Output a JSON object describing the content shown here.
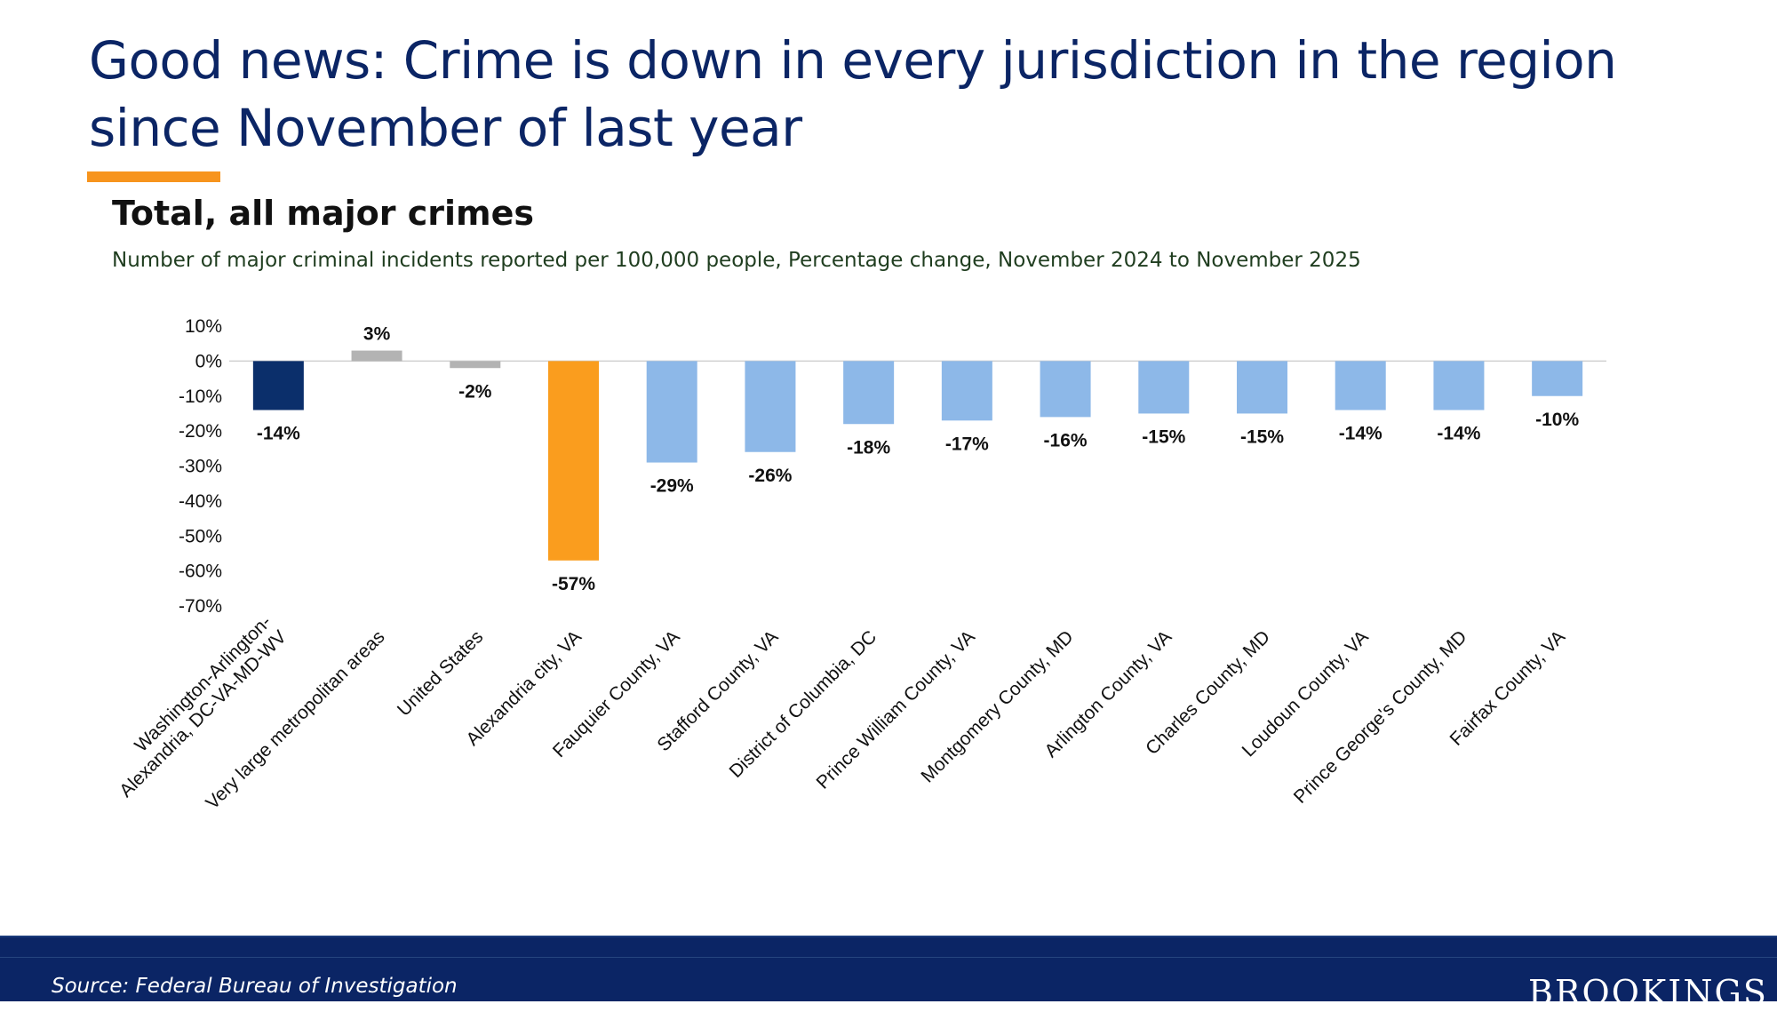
{
  "slide": {
    "title": "Good news: Crime is down in every jurisdiction in the region since November of last year",
    "accent_color": "#f7941d"
  },
  "chart_data": {
    "type": "bar",
    "title": "Total, all major crimes",
    "subtitle": "Number of major criminal incidents reported per 100,000 people, Percentage change, November 2024 to November 2025",
    "categories": [
      "Washington-Arlington-|Alexandria, DC-VA-MD-WV",
      "Very large metropolitan areas",
      "United States",
      "Alexandria city, VA",
      "Fauquier County, VA",
      "Stafford County, VA",
      "District of Columbia, DC",
      "Prince William County, VA",
      "Montgomery County, MD",
      "Arlington County, VA",
      "Charles County, MD",
      "Loudoun County, VA",
      "Prince George's County, MD",
      "Fairfax County, VA"
    ],
    "values": [
      -14,
      3,
      -2,
      -57,
      -29,
      -26,
      -18,
      -17,
      -16,
      -15,
      -15,
      -14,
      -14,
      -10
    ],
    "value_labels": [
      "-14%",
      "3%",
      "-2%",
      "-57%",
      "-29%",
      "-26%",
      "-18%",
      "-17%",
      "-16%",
      "-15%",
      "-15%",
      "-14%",
      "-14%",
      "-10%"
    ],
    "colors": [
      "#0b2f6b",
      "#b3b3b3",
      "#b3b3b3",
      "#fa9d1e",
      "#8db8e8",
      "#8db8e8",
      "#8db8e8",
      "#8db8e8",
      "#8db8e8",
      "#8db8e8",
      "#8db8e8",
      "#8db8e8",
      "#8db8e8",
      "#8db8e8"
    ],
    "ylim": [
      -70,
      10
    ],
    "yticks": [
      10,
      0,
      -10,
      -20,
      -30,
      -40,
      -50,
      -60,
      -70
    ],
    "ytick_labels": [
      "10%",
      "0%",
      "-10%",
      "-20%",
      "-30%",
      "-40%",
      "-50%",
      "-60%",
      "-70%"
    ],
    "xlabel": "",
    "ylabel": ""
  },
  "footer": {
    "source": "Source: Federal Bureau of Investigation",
    "logo_text": "BROOKINGS"
  }
}
